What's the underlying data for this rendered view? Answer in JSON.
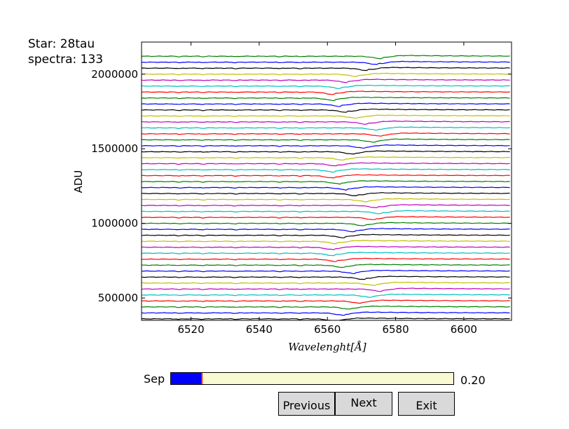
{
  "header": {
    "star": "Star: 28tau",
    "spectra_count": "spectra: 133"
  },
  "chart_data": {
    "type": "line",
    "title": "",
    "xlabel": "Wavelenght[Å]",
    "ylabel": "ADU",
    "xlim": [
      6505.5,
      6614
    ],
    "ylim": [
      350000,
      2215000
    ],
    "xticks": [
      6520,
      6540,
      6560,
      6580,
      6600
    ],
    "yticks": [
      500000,
      1000000,
      1500000,
      2000000
    ],
    "ytick_labels": [
      "500000",
      "1000000",
      "1500000",
      "2000000"
    ],
    "grid": false,
    "series_colors": [
      "#0000ff",
      "#008000",
      "#ff0000",
      "#00bfbf",
      "#bf00bf",
      "#bfbf00",
      "#000000"
    ],
    "series_count_visible": 45,
    "offsets_bottom_to_top": [
      360000,
      400000,
      440000,
      480000,
      520000,
      560000,
      600000,
      640000,
      680000,
      720000,
      760000,
      800000,
      840000,
      880000,
      920000,
      960000,
      1000000,
      1040000,
      1080000,
      1120000,
      1160000,
      1200000,
      1240000,
      1280000,
      1320000,
      1360000,
      1400000,
      1440000,
      1480000,
      1520000,
      1560000,
      1600000,
      1640000,
      1680000,
      1720000,
      1760000,
      1800000,
      1840000,
      1880000,
      1920000,
      1960000,
      2000000,
      2040000,
      2080000,
      2120000
    ],
    "absorption_center_angstrom": [
      6563,
      6565,
      6567,
      6570,
      6573,
      6576,
      6574,
      6571,
      6568,
      6565,
      6563,
      6562,
      6562,
      6563,
      6565,
      6568,
      6571,
      6574,
      6576,
      6575,
      6572,
      6569,
      6566,
      6564,
      6562,
      6562,
      6563,
      6565,
      6568,
      6571,
      6574,
      6576,
      6575,
      6572,
      6569,
      6566,
      6564,
      6562,
      6562,
      6564,
      6566,
      6569,
      6572,
      6575,
      6576
    ]
  },
  "controls": {
    "slider_label": "Sep",
    "slider_value_text": "0.20",
    "slider_fraction": 0.11,
    "buttons": {
      "previous": "Previous",
      "next": "Next",
      "exit": "Exit"
    }
  }
}
